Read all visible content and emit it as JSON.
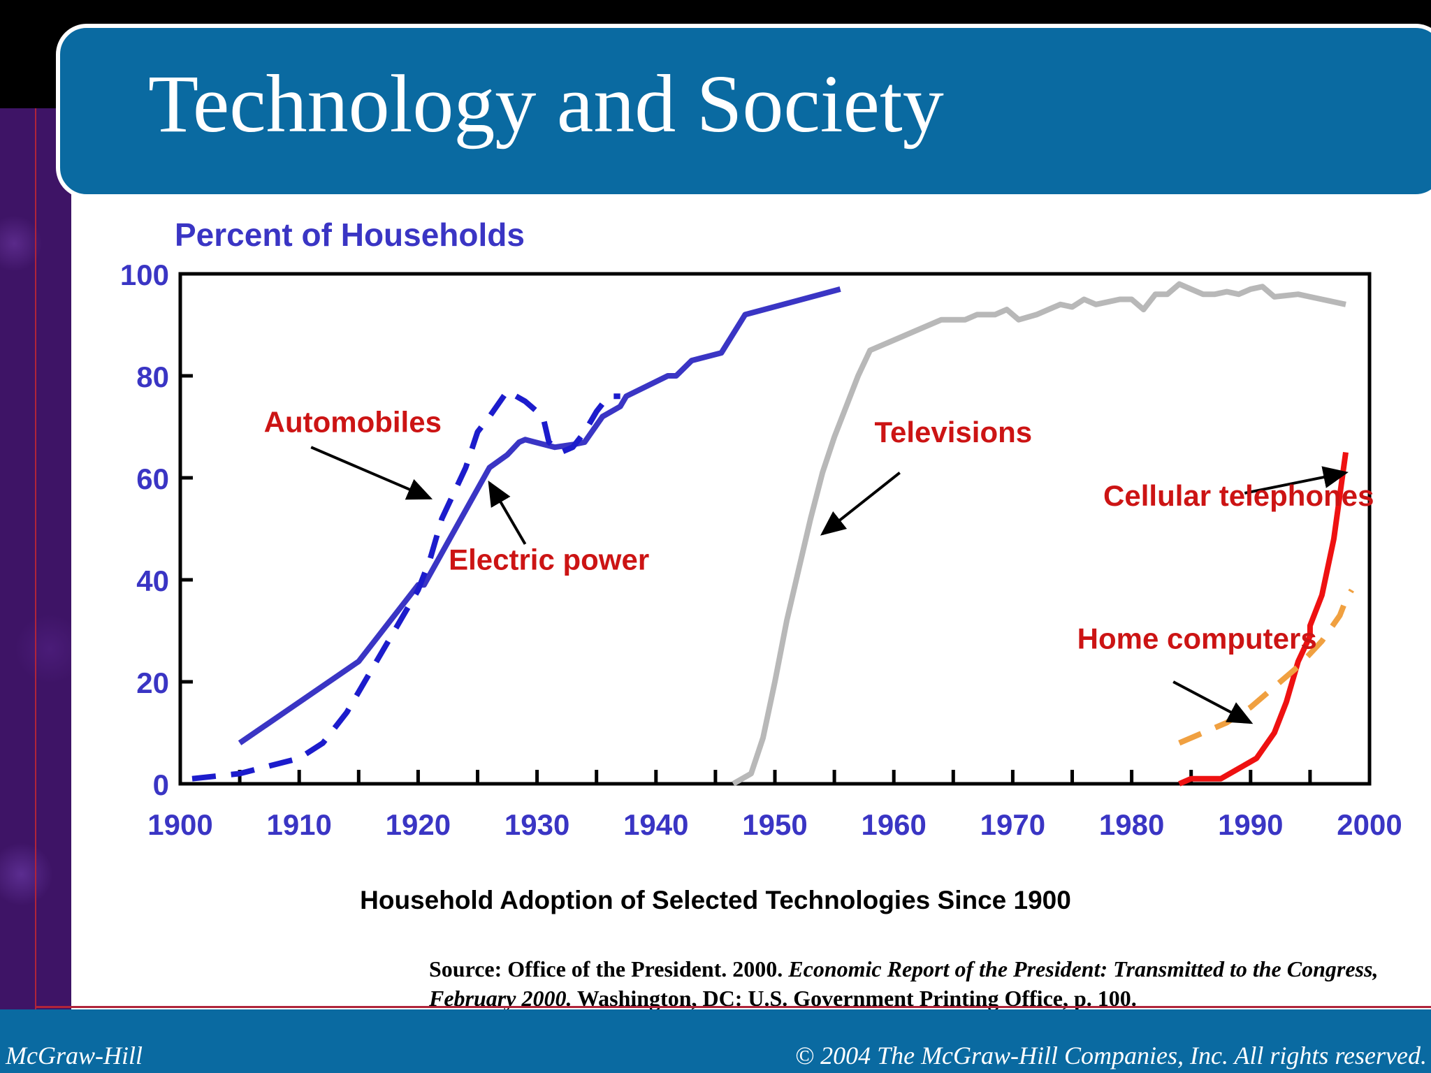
{
  "slide": {
    "title": "Technology and Society",
    "footer_left": "McGraw-Hill",
    "footer_right": "© 2004 The McGraw-Hill Companies, Inc. All rights reserved.",
    "caption": "Household Adoption of Selected Technologies Since 1900",
    "source_plain_1": "Source: Office of the President. 2000. ",
    "source_italic_1": "Economic Report of the President: Transmitted to the Congress, February 2000.",
    "source_plain_2": " Washington, DC: U.S. Government Printing Office, p. 100."
  },
  "colors": {
    "header_bg": "#0a6aa1",
    "axis_text": "#3a35c4",
    "annotation": "#cc1414",
    "electric": "#3a35c4",
    "automobiles": "#1c1ccc",
    "televisions": "#b8b8b8",
    "cellular": "#ee1111",
    "computers": "#f0a040"
  },
  "chart_data": {
    "type": "line",
    "ylabel": "Percent of Households",
    "xlim": [
      1900,
      2000
    ],
    "ylim": [
      0,
      100
    ],
    "x_ticks": [
      1900,
      1910,
      1920,
      1930,
      1940,
      1950,
      1960,
      1970,
      1980,
      1990,
      2000
    ],
    "y_ticks": [
      0,
      20,
      40,
      60,
      80,
      100
    ],
    "grid": false,
    "series": [
      {
        "name": "Electric power",
        "style": "solid",
        "color_key": "electric",
        "points": [
          [
            1905,
            8
          ],
          [
            1915,
            24
          ],
          [
            1920,
            39
          ],
          [
            1920.5,
            39
          ],
          [
            1926,
            62
          ],
          [
            1927.5,
            64.5
          ],
          [
            1928.5,
            67
          ],
          [
            1929,
            67.5
          ],
          [
            1931.5,
            66
          ],
          [
            1933,
            66.5
          ],
          [
            1934,
            67
          ],
          [
            1935.5,
            72
          ],
          [
            1937,
            74
          ],
          [
            1937.5,
            76
          ],
          [
            1941,
            80
          ],
          [
            1941.7,
            80
          ],
          [
            1943,
            83
          ],
          [
            1945.5,
            84.5
          ],
          [
            1947.5,
            92
          ],
          [
            1955.5,
            97
          ]
        ]
      },
      {
        "name": "Automobiles",
        "style": "dashed",
        "color_key": "automobiles",
        "points": [
          [
            1901,
            1
          ],
          [
            1905,
            2
          ],
          [
            1910,
            5
          ],
          [
            1912,
            8
          ],
          [
            1914,
            14
          ],
          [
            1916,
            22
          ],
          [
            1918,
            30
          ],
          [
            1920,
            38
          ],
          [
            1921,
            44
          ],
          [
            1922,
            52
          ],
          [
            1923,
            57
          ],
          [
            1924,
            62
          ],
          [
            1925,
            69
          ],
          [
            1926,
            72
          ],
          [
            1927.5,
            77
          ],
          [
            1929,
            75
          ],
          [
            1930.5,
            72
          ],
          [
            1931,
            67
          ],
          [
            1932,
            65
          ],
          [
            1933,
            66
          ],
          [
            1934,
            69
          ],
          [
            1935,
            73
          ],
          [
            1936,
            76
          ],
          [
            1937,
            76
          ]
        ]
      },
      {
        "name": "Televisions",
        "style": "solid",
        "color_key": "televisions",
        "points": [
          [
            1946.5,
            0
          ],
          [
            1948,
            2
          ],
          [
            1949,
            9
          ],
          [
            1950,
            20
          ],
          [
            1951,
            32
          ],
          [
            1952,
            42
          ],
          [
            1953,
            52
          ],
          [
            1954,
            61
          ],
          [
            1955,
            68
          ],
          [
            1956,
            74
          ],
          [
            1957,
            80
          ],
          [
            1958,
            85
          ],
          [
            1960,
            87
          ],
          [
            1962,
            89
          ],
          [
            1964,
            91
          ],
          [
            1966,
            91
          ],
          [
            1967,
            92
          ],
          [
            1968.5,
            92
          ],
          [
            1969.5,
            93
          ],
          [
            1970.5,
            91
          ],
          [
            1972,
            92
          ],
          [
            1973,
            93
          ],
          [
            1974,
            94
          ],
          [
            1975,
            93.5
          ],
          [
            1976,
            95
          ],
          [
            1977,
            94
          ],
          [
            1978,
            94.5
          ],
          [
            1979,
            95
          ],
          [
            1980,
            95
          ],
          [
            1981,
            93
          ],
          [
            1982,
            96
          ],
          [
            1983,
            96
          ],
          [
            1984,
            98
          ],
          [
            1985,
            97
          ],
          [
            1986,
            96
          ],
          [
            1987,
            96
          ],
          [
            1988,
            96.5
          ],
          [
            1989,
            96
          ],
          [
            1990,
            97
          ],
          [
            1991,
            97.5
          ],
          [
            1992,
            95.5
          ],
          [
            1994,
            96
          ],
          [
            1995,
            95.5
          ],
          [
            1996,
            95
          ],
          [
            1998,
            94
          ]
        ]
      },
      {
        "name": "Cellular telephones",
        "style": "solid",
        "color_key": "cellular",
        "points": [
          [
            1984,
            0
          ],
          [
            1985,
            1
          ],
          [
            1986,
            1
          ],
          [
            1987.5,
            1
          ],
          [
            1989,
            3
          ],
          [
            1990.5,
            5
          ],
          [
            1992,
            10
          ],
          [
            1993,
            16
          ],
          [
            1994,
            24
          ],
          [
            1995,
            29
          ],
          [
            1995,
            31
          ],
          [
            1996,
            37
          ],
          [
            1997,
            48
          ],
          [
            1998,
            65
          ]
        ]
      },
      {
        "name": "Home computers",
        "style": "dashed",
        "color_key": "computers",
        "points": [
          [
            1984,
            8
          ],
          [
            1986,
            10
          ],
          [
            1988,
            12
          ],
          [
            1990,
            15
          ],
          [
            1992,
            19
          ],
          [
            1994,
            23
          ],
          [
            1996,
            28
          ],
          [
            1997.5,
            33
          ],
          [
            1998,
            36
          ],
          [
            1998.5,
            38
          ]
        ]
      }
    ],
    "annotations": [
      {
        "text": "Automobiles",
        "x": 1914.5,
        "y": 69,
        "arrow": [
          [
            1911,
            66
          ],
          [
            1921,
            56
          ]
        ]
      },
      {
        "text": "Electric power",
        "x": 1931,
        "y": 42,
        "arrow": [
          [
            1929,
            47
          ],
          [
            1926,
            59
          ]
        ]
      },
      {
        "text": "Televisions",
        "x": 1965,
        "y": 67,
        "arrow": [
          [
            1960.5,
            61
          ],
          [
            1954,
            49
          ]
        ]
      },
      {
        "text": "Cellular telephones",
        "x": 1989,
        "y": 54.5,
        "arrow": [
          [
            1989.5,
            57
          ],
          [
            1998,
            61
          ]
        ]
      },
      {
        "text": "Home computers",
        "x": 1985.5,
        "y": 26.5,
        "arrow": [
          [
            1983.5,
            20
          ],
          [
            1990,
            12
          ]
        ]
      }
    ]
  }
}
